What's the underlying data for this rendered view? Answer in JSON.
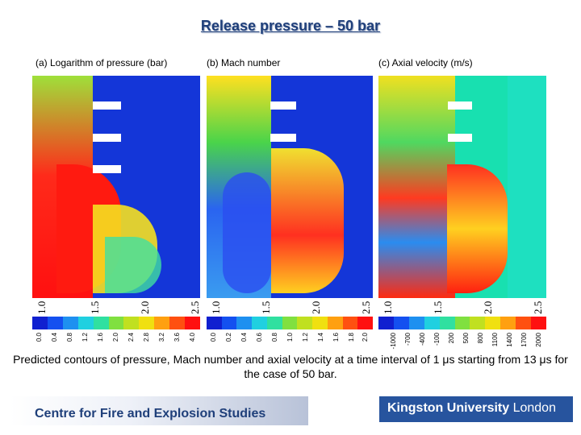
{
  "title": "Release pressure – 50 bar",
  "panels": [
    {
      "label": "(a) Logarithm of pressure (bar)",
      "ticks": [
        "1.0",
        "1.5",
        "2.0",
        "2.5"
      ],
      "colorbar": [
        "0.0",
        "0.4",
        "0.8",
        "1.2",
        "1.6",
        "2.0",
        "2.4",
        "2.8",
        "3.2",
        "3.6",
        "4.0"
      ]
    },
    {
      "label": "(b) Mach number",
      "ticks": [
        "1.0",
        "1.5",
        "2.0",
        "2.5"
      ],
      "colorbar": [
        "0.0",
        "0.2",
        "0.4",
        "0.6",
        "0.8",
        "1.0",
        "1.2",
        "1.4",
        "1.6",
        "1.8",
        "2.0"
      ]
    },
    {
      "label": "(c) Axial velocity (m/s)",
      "ticks": [
        "1.0",
        "1.5",
        "2.0",
        "2.5"
      ],
      "colorbar": [
        "-1000",
        "-700",
        "-400",
        "-100",
        "200",
        "500",
        "800",
        "1100",
        "1400",
        "1700",
        "2000"
      ]
    }
  ],
  "caption": "Predicted contours of pressure, Mach number and axial velocity at a time interval of 1 μs starting from 13 μs for the case of 50 bar.",
  "footer": {
    "left_text": "Centre for Fire and Explosion Studies",
    "right_text_bold": "Kingston University",
    "right_text_light": " London"
  },
  "colors": {
    "title": "#1f3f7a",
    "footer_bar": "#27549e"
  }
}
